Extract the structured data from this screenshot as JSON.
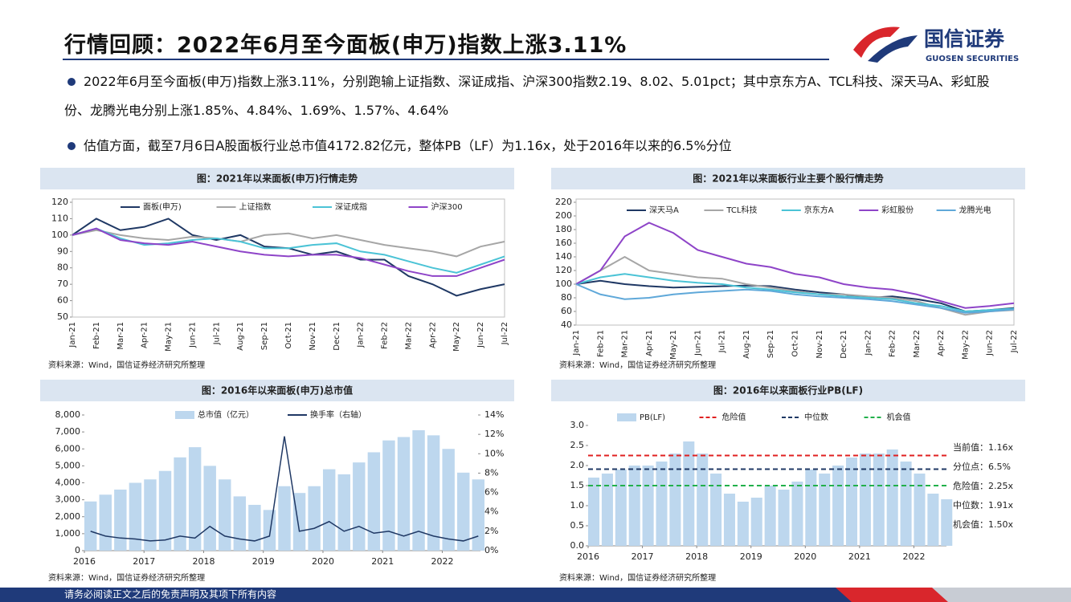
{
  "header": {
    "title": "行情回顾：2022年6月至今面板(申万)指数上涨3.11%",
    "logo_cn": "国信证券",
    "logo_en": "GUOSEN SECURITIES"
  },
  "bullets": [
    "2022年6月至今面板(申万)指数上涨3.11%，分别跑输上证指数、深证成指、沪深300指数2.19、8.02、5.01pct；其中京东方A、TCL科技、深天马A、彩虹股份、龙腾光电分别上涨1.85%、4.84%、1.69%、1.57%、4.64%",
    "估值方面，截至7月6日A股面板行业总市值4172.82亿元，整体PB（LF）为1.16x，处于2016年以来的6.5%分位"
  ],
  "footer": "请务必阅读正文之后的免责声明及其项下所有内容",
  "chart_data": [
    {
      "type": "line",
      "title": "图：2021年以来面板(申万)行情走势",
      "source": "资料来源：Wind，国信证券经济研究所整理",
      "categories": [
        "Jan-21",
        "Feb-21",
        "Mar-21",
        "Apr-21",
        "May-21",
        "Jun-21",
        "Jul-21",
        "Aug-21",
        "Sep-21",
        "Oct-21",
        "Nov-21",
        "Dec-21",
        "Jan-22",
        "Feb-22",
        "Mar-22",
        "Apr-22",
        "May-22",
        "Jun-22",
        "Jul-22"
      ],
      "ylim": [
        50,
        120
      ],
      "yticks": [
        50,
        60,
        70,
        80,
        90,
        100,
        110,
        120
      ],
      "series": [
        {
          "name": "面板(申万)",
          "color": "#1f3864",
          "values": [
            100,
            110,
            103,
            105,
            110,
            100,
            97,
            100,
            93,
            92,
            88,
            90,
            85,
            85,
            75,
            70,
            63,
            67,
            70
          ]
        },
        {
          "name": "上证指数",
          "color": "#a6a6a6",
          "values": [
            100,
            103,
            100,
            98,
            97,
            99,
            98,
            96,
            100,
            101,
            98,
            100,
            97,
            94,
            92,
            90,
            87,
            93,
            96
          ]
        },
        {
          "name": "深证成指",
          "color": "#4bc3d6",
          "values": [
            100,
            104,
            98,
            94,
            95,
            97,
            98,
            96,
            92,
            92,
            94,
            95,
            90,
            88,
            84,
            80,
            77,
            82,
            87
          ]
        },
        {
          "name": "沪深300",
          "color": "#8e44c8",
          "values": [
            100,
            104,
            97,
            95,
            94,
            96,
            93,
            90,
            88,
            87,
            88,
            88,
            86,
            82,
            78,
            75,
            75,
            80,
            85
          ]
        }
      ]
    },
    {
      "type": "line",
      "title": "图：2021年以来面板行业主要个股行情走势",
      "source": "资料来源：Wind，国信证券经济研究所整理",
      "categories": [
        "Jan-21",
        "Feb-21",
        "Mar-21",
        "Apr-21",
        "May-21",
        "Jun-21",
        "Jul-21",
        "Aug-21",
        "Sep-21",
        "Oct-21",
        "Nov-21",
        "Dec-21",
        "Jan-22",
        "Feb-22",
        "Mar-22",
        "Apr-22",
        "May-22",
        "Jun-22",
        "Jul-22"
      ],
      "ylim": [
        40,
        220
      ],
      "yticks": [
        40,
        60,
        80,
        100,
        120,
        140,
        160,
        180,
        200,
        220
      ],
      "series": [
        {
          "name": "深天马A",
          "color": "#1f3864",
          "values": [
            100,
            105,
            100,
            97,
            95,
            96,
            97,
            98,
            97,
            92,
            88,
            85,
            80,
            82,
            78,
            72,
            60,
            62,
            65
          ]
        },
        {
          "name": "TCL科技",
          "color": "#a6a6a6",
          "values": [
            100,
            120,
            140,
            120,
            115,
            110,
            108,
            100,
            95,
            90,
            85,
            85,
            82,
            80,
            75,
            65,
            55,
            60,
            62
          ]
        },
        {
          "name": "京东方A",
          "color": "#4bc3d6",
          "values": [
            100,
            110,
            115,
            110,
            105,
            102,
            100,
            95,
            92,
            88,
            85,
            82,
            80,
            78,
            72,
            68,
            60,
            62,
            64
          ]
        },
        {
          "name": "彩虹股份",
          "color": "#8e44c8",
          "values": [
            100,
            120,
            170,
            190,
            175,
            150,
            140,
            130,
            125,
            115,
            110,
            100,
            95,
            92,
            85,
            75,
            65,
            68,
            72
          ]
        },
        {
          "name": "龙腾光电",
          "color": "#5fa8d9",
          "values": [
            100,
            85,
            78,
            80,
            85,
            88,
            90,
            92,
            90,
            85,
            82,
            80,
            78,
            75,
            70,
            65,
            58,
            60,
            63
          ]
        }
      ]
    },
    {
      "type": "combo",
      "title": "图：2016年以来面板(申万)总市值",
      "source": "资料来源：Wind，国信证券经济研究所整理",
      "x": [
        2016,
        2016.25,
        2016.5,
        2016.75,
        2017,
        2017.25,
        2017.5,
        2017.75,
        2018,
        2018.25,
        2018.5,
        2018.75,
        2019,
        2019.25,
        2019.5,
        2019.75,
        2020,
        2020.25,
        2020.5,
        2020.75,
        2021,
        2021.25,
        2021.5,
        2021.75,
        2022,
        2022.25,
        2022.5
      ],
      "xlim": [
        2016,
        2022.6
      ],
      "xticks": [
        2016,
        2017,
        2018,
        2019,
        2020,
        2021,
        2022
      ],
      "ylim": [
        0,
        8000
      ],
      "yticks": [
        0,
        {
          "value": 1000,
          "label": "1,000"
        },
        {
          "value": 2000,
          "label": "2,000"
        },
        {
          "value": 3000,
          "label": "3,000"
        },
        {
          "value": 4000,
          "label": "4,000"
        },
        {
          "value": 5000,
          "label": "5,000"
        },
        {
          "value": 6000,
          "label": "6,000"
        },
        {
          "value": 7000,
          "label": "7,000"
        },
        {
          "value": 8000,
          "label": "8,000"
        }
      ],
      "y2lim": [
        0,
        14
      ],
      "y2ticks": [
        {
          "value": 0,
          "label": "0%"
        },
        {
          "value": 2,
          "label": "2%"
        },
        {
          "value": 4,
          "label": "4%"
        },
        {
          "value": 6,
          "label": "6%"
        },
        {
          "value": 8,
          "label": "8%"
        },
        {
          "value": 10,
          "label": "10%"
        },
        {
          "value": 12,
          "label": "12%"
        },
        {
          "value": 14,
          "label": "14%"
        }
      ],
      "series": [
        {
          "name": "总市值（亿元）",
          "type": "bar",
          "color": "#bdd7ee",
          "values": [
            2900,
            3300,
            3600,
            4000,
            4200,
            4700,
            5500,
            6100,
            5000,
            4200,
            3200,
            2700,
            2400,
            3800,
            3400,
            3800,
            4800,
            4500,
            5200,
            5800,
            6500,
            6700,
            7100,
            6800,
            6000,
            4600,
            4200
          ]
        },
        {
          "name": "换手率（右轴）",
          "type": "line",
          "axis": "y2",
          "color": "#1f3864",
          "values": [
            2.0,
            1.5,
            1.3,
            1.2,
            1.0,
            1.1,
            1.5,
            1.3,
            2.5,
            1.5,
            1.2,
            1.0,
            1.5,
            11.8,
            2.0,
            2.3,
            3.0,
            2.0,
            2.5,
            1.8,
            2.0,
            1.5,
            2.0,
            1.5,
            1.2,
            1.0,
            1.5
          ]
        }
      ]
    },
    {
      "type": "bar",
      "title": "图：2016年以来面板行业PB(LF)",
      "source": "资料来源：Wind，国信证券经济研究所整理",
      "x": [
        2016,
        2016.25,
        2016.5,
        2016.75,
        2017,
        2017.25,
        2017.5,
        2017.75,
        2018,
        2018.25,
        2018.5,
        2018.75,
        2019,
        2019.25,
        2019.5,
        2019.75,
        2020,
        2020.25,
        2020.5,
        2020.75,
        2021,
        2021.25,
        2021.5,
        2021.75,
        2022,
        2022.25,
        2022.5
      ],
      "xlim": [
        2016,
        2022.6
      ],
      "xticks": [
        2016,
        2017,
        2018,
        2019,
        2020,
        2021,
        2022
      ],
      "ylim": [
        0,
        3
      ],
      "yticks": [
        {
          "value": 0,
          "label": "0.0"
        },
        0.5,
        {
          "value": 1,
          "label": "1.0"
        },
        1.5,
        {
          "value": 2,
          "label": "2.0"
        },
        2.5,
        {
          "value": 3,
          "label": "3.0"
        }
      ],
      "series": [
        {
          "name": "PB(LF)",
          "color": "#bdd7ee",
          "values": [
            1.7,
            1.8,
            1.9,
            2.0,
            2.0,
            2.1,
            2.3,
            2.6,
            2.3,
            1.8,
            1.3,
            1.1,
            1.2,
            1.5,
            1.4,
            1.6,
            1.9,
            1.8,
            2.0,
            2.2,
            2.3,
            2.3,
            2.4,
            2.1,
            1.8,
            1.3,
            1.16
          ]
        }
      ],
      "reference_lines": [
        {
          "name": "危险值",
          "value": 2.25,
          "color": "#e02020"
        },
        {
          "name": "中位数",
          "value": 1.91,
          "color": "#1f3864"
        },
        {
          "name": "机会值",
          "value": 1.5,
          "color": "#22b04b"
        }
      ],
      "annotations": [
        "当前值：1.16x",
        "分位点：6.5%",
        "危险值：2.25x",
        "中位数：1.91x",
        "机会值：1.50x"
      ]
    }
  ]
}
